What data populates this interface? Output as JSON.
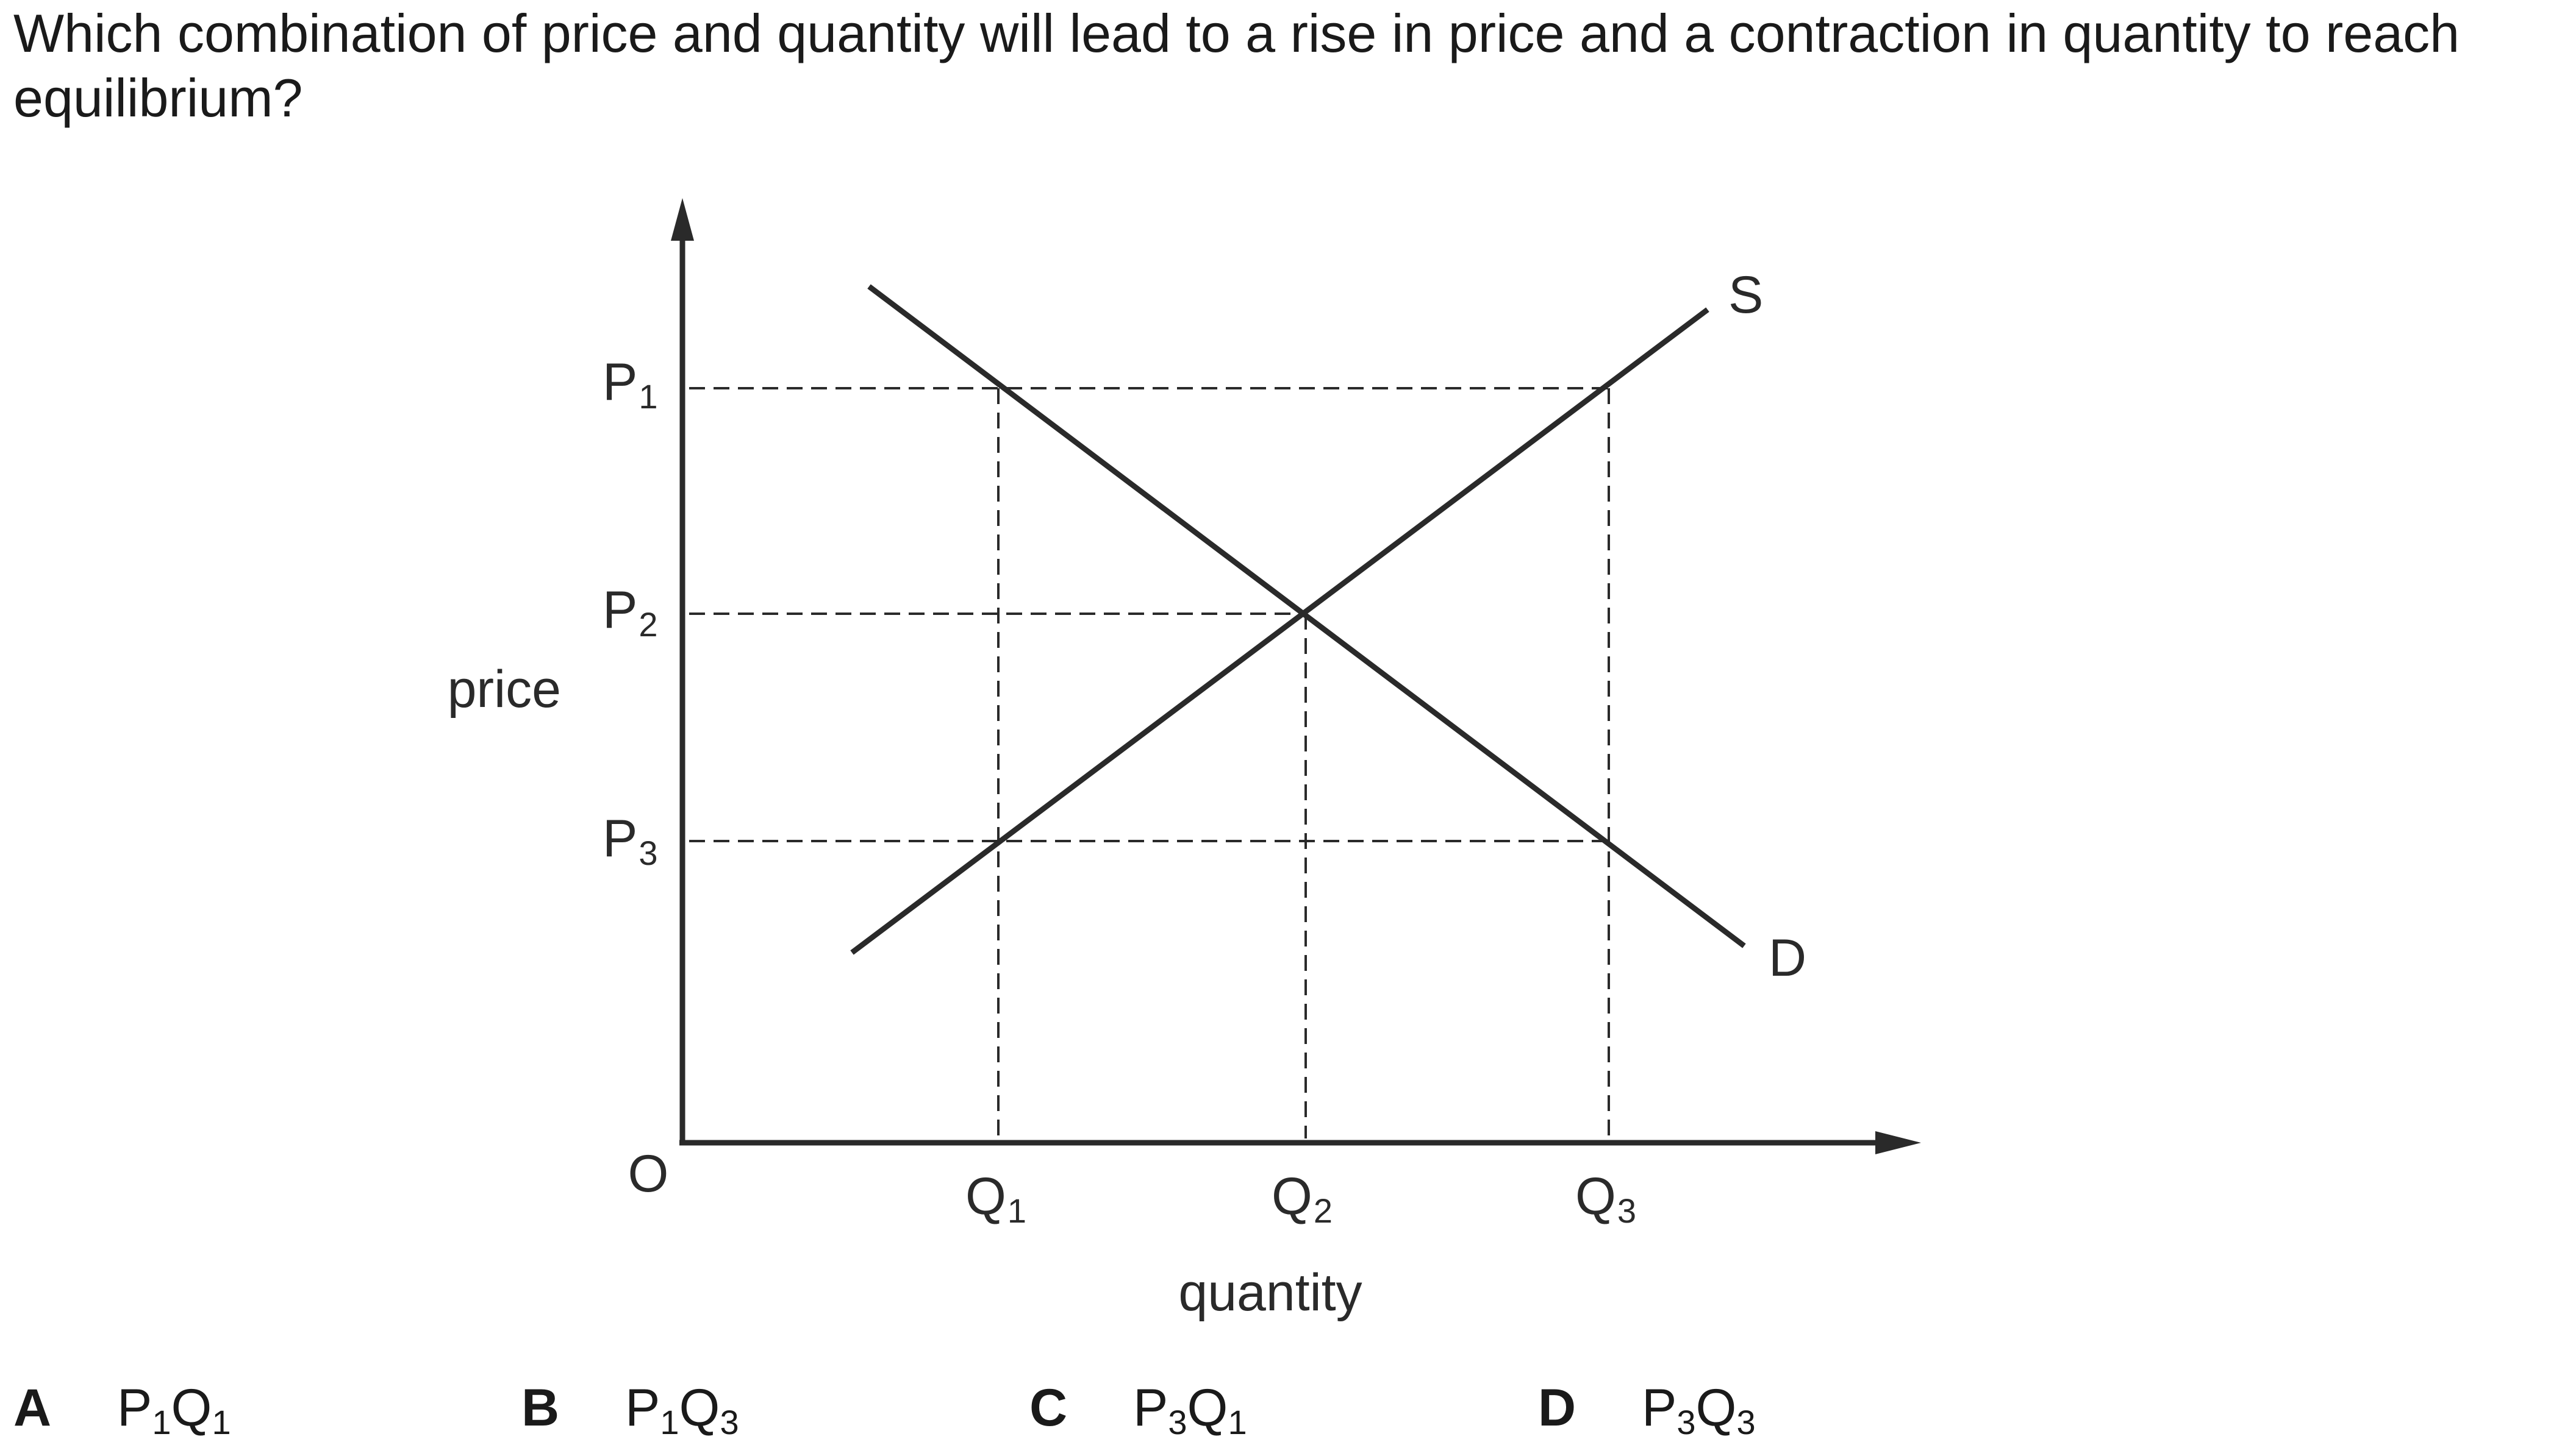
{
  "question": "Which combination of price and quantity will lead to a rise in price and a contraction in quantity to reach equilibrium?",
  "chart_data": {
    "type": "line",
    "ylabel": "price",
    "xlabel": "quantity",
    "origin_label": "O",
    "price_levels": [
      {
        "base": "P",
        "sub": "1"
      },
      {
        "base": "P",
        "sub": "2"
      },
      {
        "base": "P",
        "sub": "3"
      }
    ],
    "quantity_levels": [
      {
        "base": "Q",
        "sub": "1"
      },
      {
        "base": "Q",
        "sub": "2"
      },
      {
        "base": "Q",
        "sub": "3"
      }
    ],
    "series": [
      {
        "name": "S",
        "slope": "upward",
        "passes": [
          "P3Q1",
          "P2Q2",
          "P1Q3"
        ]
      },
      {
        "name": "D",
        "slope": "downward",
        "passes": [
          "P1Q1",
          "P2Q2",
          "P3Q3"
        ]
      }
    ],
    "equilibrium": "P2Q2",
    "grid": "dashed guide lines to P1, P2, P3 and Q1, Q2, Q3"
  },
  "options": [
    {
      "letter": "A",
      "p_sub": "1",
      "q_sub": "1"
    },
    {
      "letter": "B",
      "p_sub": "1",
      "q_sub": "3"
    },
    {
      "letter": "C",
      "p_sub": "3",
      "q_sub": "1"
    },
    {
      "letter": "D",
      "p_sub": "3",
      "q_sub": "3"
    }
  ]
}
